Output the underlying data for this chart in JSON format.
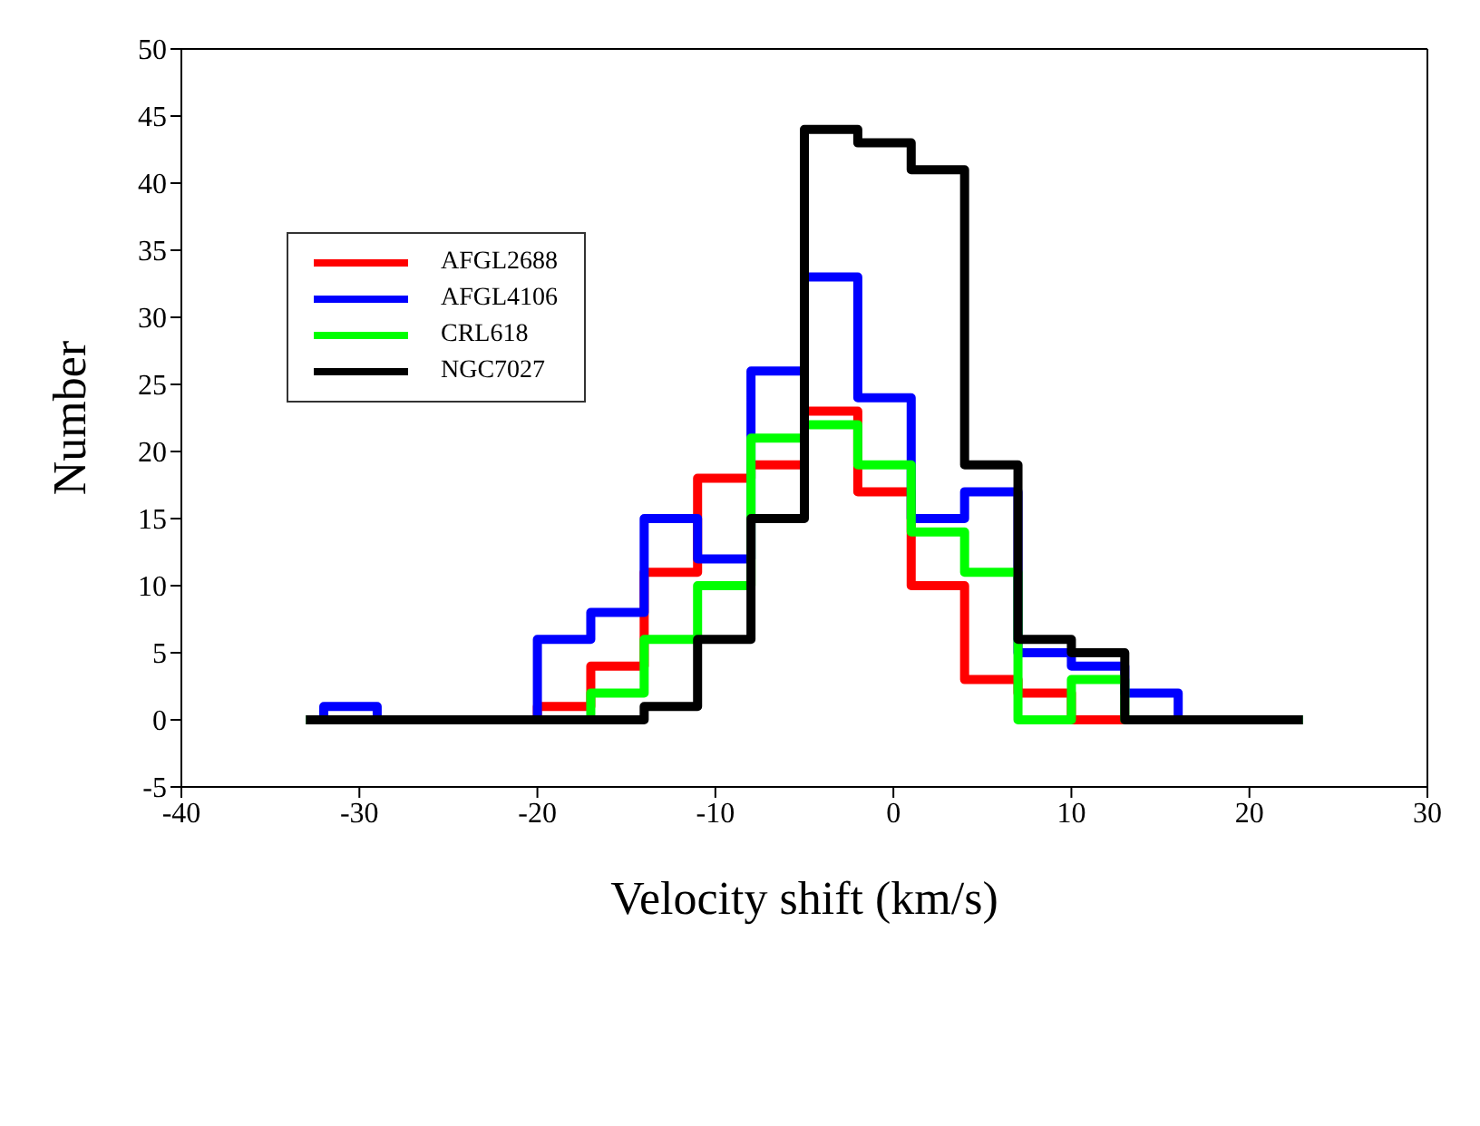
{
  "chart_data": {
    "type": "histogram",
    "xlabel": "Velocity shift (km/s)",
    "ylabel": "Number",
    "bins": [
      -33,
      -32,
      -29,
      -26,
      -23,
      -20,
      -17,
      -14,
      -11,
      -8,
      -5,
      -2,
      1,
      4,
      7,
      10,
      13,
      16,
      19,
      22,
      23
    ],
    "series": [
      {
        "name": "AFGL2688",
        "color": "#ff0000",
        "values": [
          0,
          0,
          0,
          0,
          0,
          1,
          4,
          11,
          18,
          19,
          23,
          17,
          10,
          3,
          2,
          0,
          0,
          0,
          0,
          0
        ]
      },
      {
        "name": "AFGL4106",
        "color": "#0000ff",
        "values": [
          0,
          1,
          0,
          0,
          0,
          6,
          8,
          15,
          12,
          26,
          33,
          24,
          15,
          17,
          5,
          4,
          2,
          0,
          0,
          0
        ]
      },
      {
        "name": "CRL618",
        "color": "#00ff00",
        "values": [
          0,
          0,
          0,
          0,
          0,
          0,
          2,
          6,
          10,
          21,
          22,
          19,
          14,
          11,
          0,
          3,
          0,
          0,
          0,
          0
        ]
      },
      {
        "name": "NGC7027",
        "color": "#000000",
        "values": [
          0,
          0,
          0,
          0,
          0,
          0,
          0,
          1,
          6,
          15,
          44,
          43,
          41,
          19,
          6,
          5,
          0,
          0,
          0,
          0
        ]
      }
    ],
    "xlim": [
      -40,
      30
    ],
    "xticks": [
      -40,
      -30,
      -20,
      -10,
      0,
      10,
      20,
      30
    ],
    "ylim": [
      -5,
      50
    ],
    "yticks": [
      -5,
      0,
      5,
      10,
      15,
      20,
      25,
      30,
      35,
      40,
      45,
      50
    ],
    "grid": false,
    "legend": "top left"
  }
}
